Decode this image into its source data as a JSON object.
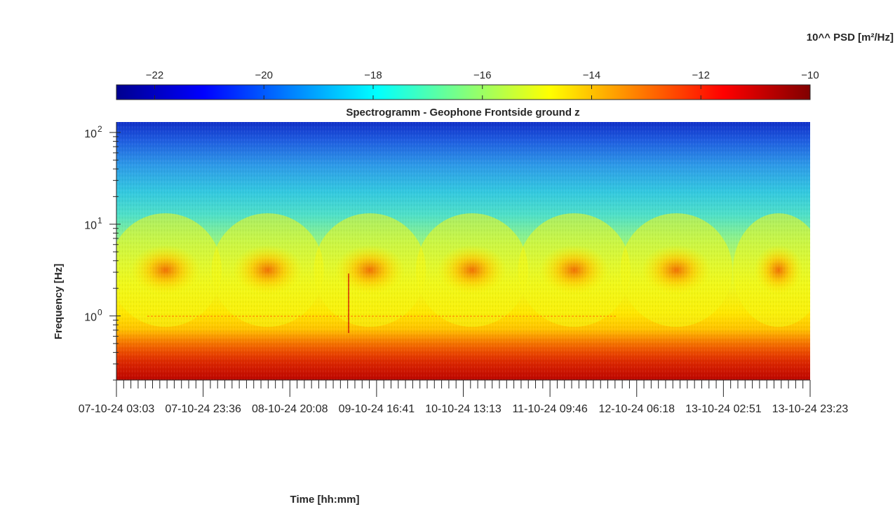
{
  "chart_data": {
    "type": "heatmap",
    "title": "Spectrogramm - Geophone Frontside ground z",
    "xlabel": "Time [hh:mm]",
    "ylabel": "Frequency [Hz]",
    "y_scale": "log",
    "ylim": [
      0.2,
      130
    ],
    "y_ticks": [
      {
        "value": 1,
        "label": "10",
        "exp": "0"
      },
      {
        "value": 10,
        "label": "10",
        "exp": "1"
      },
      {
        "value": 100,
        "label": "10",
        "exp": "2"
      }
    ],
    "x_tick_labels": [
      "07-10-24  03:03",
      "07-10-24  23:36",
      "08-10-24  20:08",
      "09-10-24  16:41",
      "10-10-24  13:13",
      "11-10-24  09:46",
      "12-10-24  06:18",
      "13-10-24  02:51",
      "13-10-24  23:23"
    ],
    "colorbar": {
      "label": "10^^ PSD [m²/Hz]",
      "range": [
        -22.7,
        -10
      ],
      "ticks": [
        -22,
        -20,
        -18,
        -16,
        -14,
        -12,
        -10
      ],
      "colormap": "jet"
    },
    "features": {
      "day_bursts_freq_range_hz": [
        2,
        5
      ],
      "day_burst_count": 7,
      "line_at_1hz": true,
      "low_freq_band_hz": [
        0.2,
        0.7
      ]
    }
  }
}
